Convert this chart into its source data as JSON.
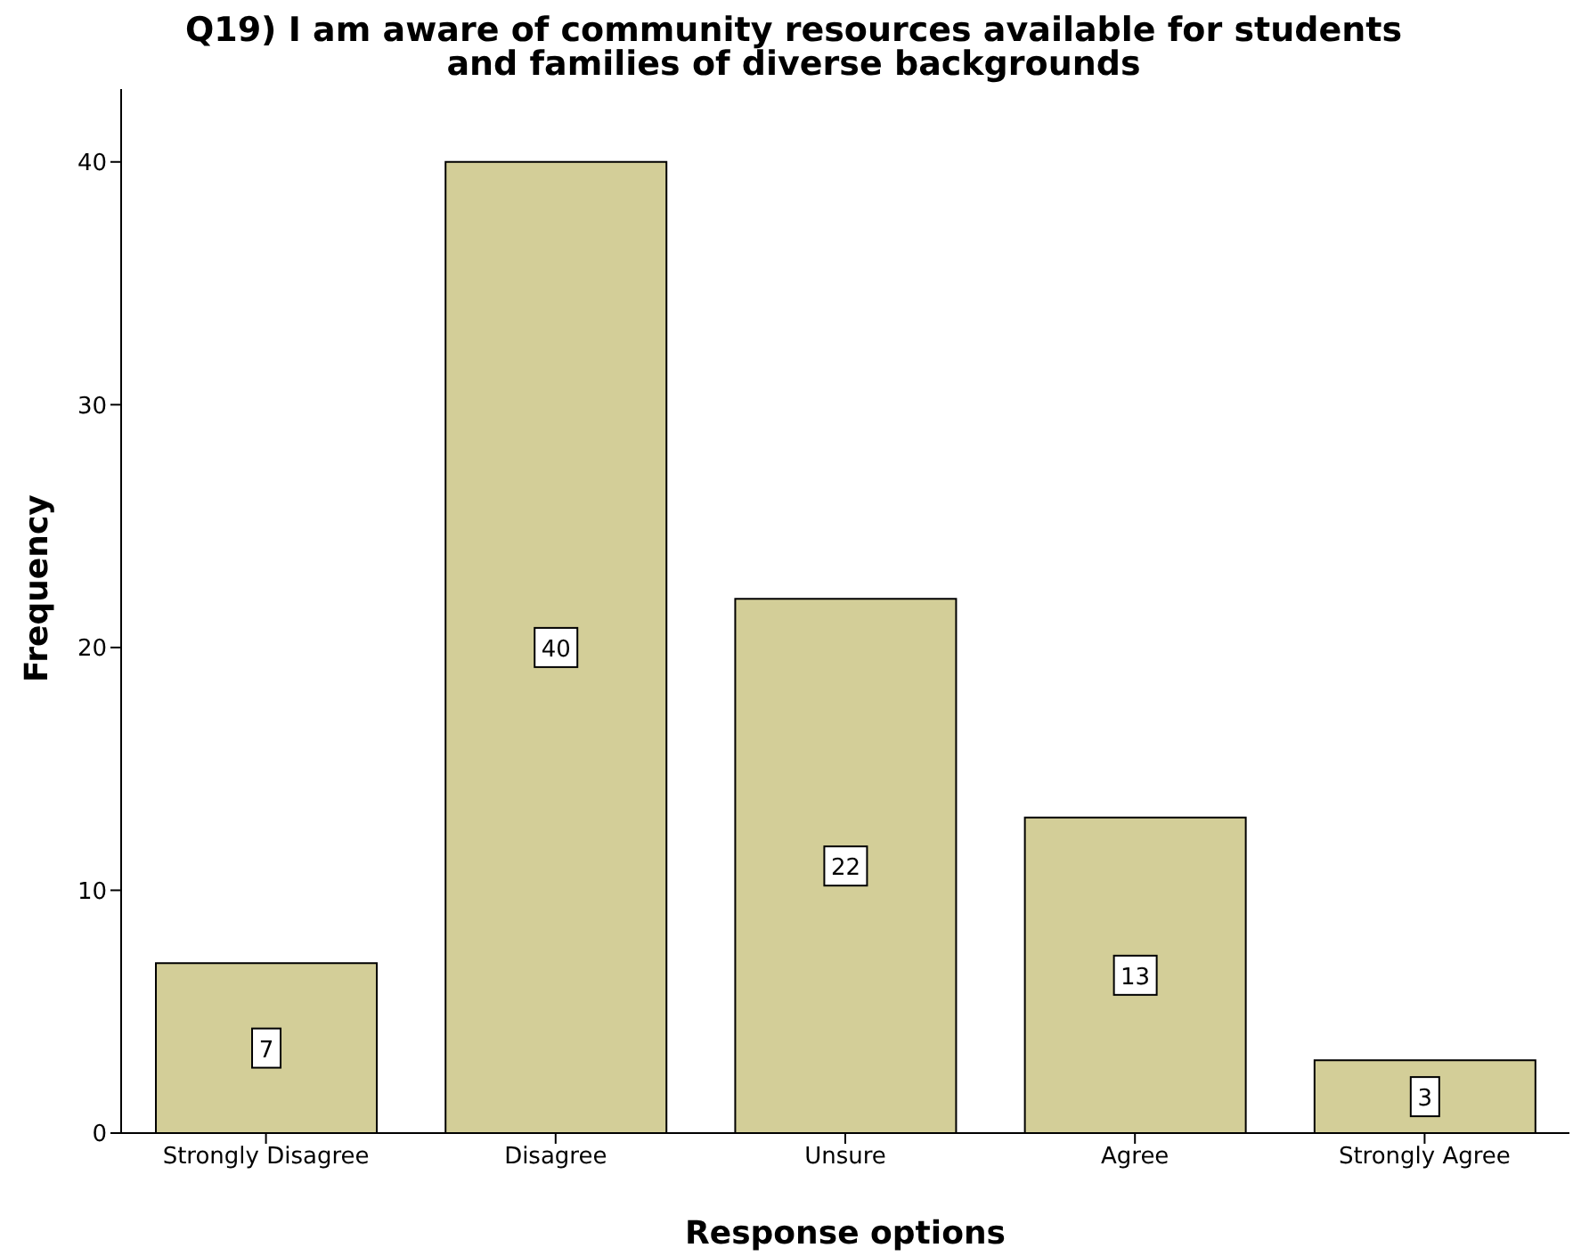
{
  "chart_data": {
    "type": "bar",
    "title": "Q19) I am aware of community resources available for students and families of diverse backgrounds",
    "xlabel": "Response options",
    "ylabel": "Frequency",
    "categories": [
      "Strongly Disagree",
      "Disagree",
      "Unsure",
      "Agree",
      "Strongly Agree"
    ],
    "values": [
      7,
      40,
      22,
      13,
      3
    ],
    "color": "#d3ce98",
    "data_labels": true,
    "ylim": [
      0,
      43
    ],
    "yticks": [
      0,
      10,
      20,
      30,
      40
    ],
    "grid": false,
    "legend": false
  }
}
